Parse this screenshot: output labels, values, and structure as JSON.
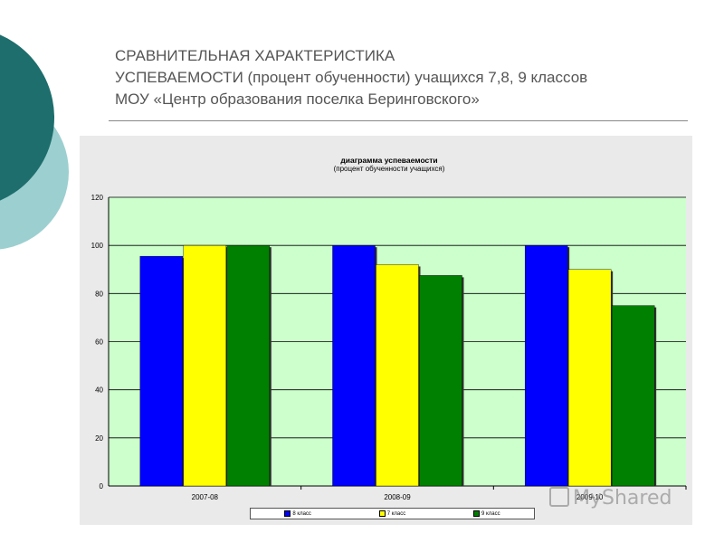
{
  "slide": {
    "title_lines": [
      "СРАВНИТЕЛЬНАЯ  ХАРАКТЕРИСТИКА",
      "УСПЕВАЕМОСТИ (процент обученности) учащихся 7,8, 9 классов",
      "МОУ «Центр образования поселка Беринговского»"
    ]
  },
  "colors": {
    "deco_dark": "#1d6e6c",
    "deco_light": "#9ccfd0",
    "plot_bg": "#ccffcc",
    "series": [
      "#0000ff",
      "#ffff00",
      "#008000"
    ]
  },
  "watermark": {
    "text": "MyShared"
  },
  "chart_data": {
    "type": "bar",
    "title": "диаграмма успеваемости",
    "subtitle": "(процент обученности учащихся)",
    "categories": [
      "2007-08",
      "2008-09",
      "2009-10"
    ],
    "series": [
      {
        "name": "8 класс",
        "values": [
          95.5,
          100,
          100
        ]
      },
      {
        "name": "7 класс",
        "values": [
          100,
          92,
          90
        ]
      },
      {
        "name": "9 класс",
        "values": [
          100,
          87.5,
          75
        ]
      }
    ],
    "yticks": [
      "0",
      "20",
      "40",
      "60",
      "80",
      "100",
      "120"
    ],
    "ylim": [
      0,
      120
    ],
    "grid": true,
    "legend": "bottom"
  }
}
